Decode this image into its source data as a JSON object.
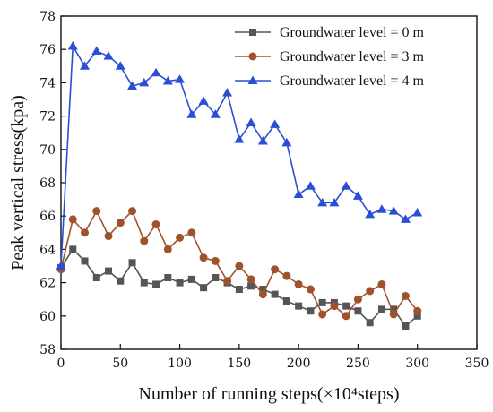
{
  "chart_data": {
    "type": "line",
    "xlabel": "Number of running steps(×10⁴steps)",
    "ylabel": "Peak vertical stress(kpa)",
    "xlim": [
      0,
      350
    ],
    "ylim": [
      58,
      78
    ],
    "xticks": [
      0,
      50,
      100,
      150,
      200,
      250,
      300,
      350
    ],
    "yticks": [
      58,
      60,
      62,
      64,
      66,
      68,
      70,
      72,
      74,
      76,
      78
    ],
    "grid": false,
    "legend_position": "top-right",
    "x": [
      0,
      10,
      20,
      30,
      40,
      50,
      60,
      70,
      80,
      90,
      100,
      110,
      120,
      130,
      140,
      150,
      160,
      170,
      180,
      190,
      200,
      210,
      220,
      230,
      240,
      250,
      260,
      270,
      280,
      290,
      300
    ],
    "series": [
      {
        "name": "Groundwater level = 0 m",
        "color": "#555555",
        "marker": "square",
        "values": [
          62.9,
          64.0,
          63.3,
          62.3,
          62.7,
          62.1,
          63.2,
          62.0,
          61.9,
          62.3,
          62.0,
          62.2,
          61.7,
          62.3,
          62.0,
          61.6,
          61.8,
          61.6,
          61.3,
          60.9,
          60.6,
          60.3,
          60.8,
          60.8,
          60.6,
          60.3,
          59.6,
          60.4,
          60.4,
          59.4,
          60.0
        ]
      },
      {
        "name": "Groundwater level = 3 m",
        "color": "#a0522d",
        "marker": "circle",
        "values": [
          62.8,
          65.8,
          65.0,
          66.3,
          64.8,
          65.6,
          66.3,
          64.5,
          65.5,
          64.0,
          64.7,
          65.0,
          63.5,
          63.3,
          62.1,
          63.0,
          62.2,
          61.3,
          62.8,
          62.4,
          61.9,
          61.6,
          60.1,
          60.6,
          60.0,
          61.0,
          61.5,
          61.9,
          60.1,
          61.2,
          60.3
        ]
      },
      {
        "name": "Groundwater level = 4 m",
        "color": "#2a4fd6",
        "marker": "triangle",
        "values": [
          63.0,
          76.2,
          75.0,
          75.9,
          75.6,
          75.0,
          73.8,
          74.0,
          74.6,
          74.1,
          74.2,
          72.1,
          72.9,
          72.1,
          73.4,
          70.6,
          71.6,
          70.5,
          71.5,
          70.4,
          67.3,
          67.8,
          66.8,
          66.8,
          67.8,
          67.2,
          66.1,
          66.4,
          66.3,
          65.8,
          66.2
        ]
      }
    ]
  }
}
